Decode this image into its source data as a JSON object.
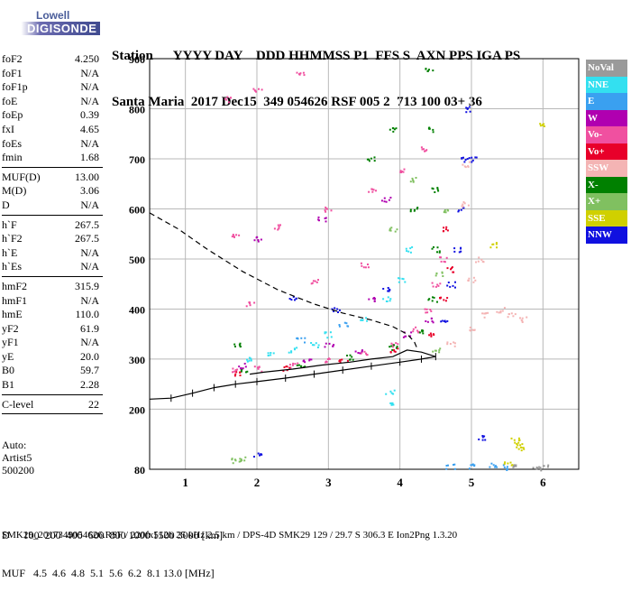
{
  "logo": {
    "top": "Lowell",
    "bottom": "DIGISONDE"
  },
  "header": {
    "line1": "Station      YYYY DAY    DDD HHMMSS P1  FFS S  AXN PPS IGA PS",
    "line2": "Santa Maria  2017 Dec15  349 054626 RSF 005 2  713 100 03+ 36"
  },
  "params": {
    "group1": [
      {
        "k": "foF2",
        "v": "4.250"
      },
      {
        "k": "foF1",
        "v": "N/A"
      },
      {
        "k": "foF1p",
        "v": "N/A"
      },
      {
        "k": "foE",
        "v": "N/A"
      },
      {
        "k": "foEp",
        "v": "0.39"
      },
      {
        "k": "fxI",
        "v": "4.65"
      },
      {
        "k": "foEs",
        "v": "N/A"
      },
      {
        "k": "fmin",
        "v": "1.68"
      }
    ],
    "group2": [
      {
        "k": "MUF(D)",
        "v": "13.00"
      },
      {
        "k": "M(D)",
        "v": "3.06"
      },
      {
        "k": "D",
        "v": "N/A"
      }
    ],
    "group3": [
      {
        "k": "h`F",
        "v": "267.5"
      },
      {
        "k": "h`F2",
        "v": "267.5"
      },
      {
        "k": "h`E",
        "v": "N/A"
      },
      {
        "k": "h`Es",
        "v": "N/A"
      }
    ],
    "group4": [
      {
        "k": "hmF2",
        "v": "315.9"
      },
      {
        "k": "hmF1",
        "v": "N/A"
      },
      {
        "k": "hmE",
        "v": "110.0"
      },
      {
        "k": "yF2",
        "v": "61.9"
      },
      {
        "k": "yF1",
        "v": "N/A"
      },
      {
        "k": "yE",
        "v": "20.0"
      },
      {
        "k": "B0",
        "v": "59.7"
      },
      {
        "k": "B1",
        "v": "2.28"
      }
    ],
    "group5": [
      {
        "k": "C-level",
        "v": "22"
      }
    ]
  },
  "auto": {
    "l1": "Auto:",
    "l2": "Artist5",
    "l3": "500200"
  },
  "dmuf": {
    "d_line": "D     100  200  400  600  800 1000 1500 3000 [km]",
    "muf_line": "MUF   4.5  4.6  4.8  5.1  5.6  6.2  8.1 13.0 [MHz]"
  },
  "footer": "SMK29_2017349054626.RSF / 220fx512h 25 kHz 2.5 km / DPS-4D SMK29 129 / 29.7 S 306.3 E Ion2Png 1.3.20",
  "legend": [
    {
      "label": "NoVal",
      "color": "#9a9a9a"
    },
    {
      "label": "NNE",
      "color": "#33e0f0"
    },
    {
      "label": "E",
      "color": "#3aa0f0"
    },
    {
      "label": "W",
      "color": "#b000b0"
    },
    {
      "label": "Vo-",
      "color": "#f050a0"
    },
    {
      "label": "Vo+",
      "color": "#e8002a"
    },
    {
      "label": "SSW",
      "color": "#f4b4b4"
    },
    {
      "label": "X-",
      "color": "#008000"
    },
    {
      "label": "X+",
      "color": "#80c060"
    },
    {
      "label": "SSE",
      "color": "#d0d000"
    },
    {
      "label": "NNW",
      "color": "#1010e0"
    }
  ],
  "chart_data": {
    "type": "scatter",
    "xlim": [
      0.5,
      6.5
    ],
    "ylim": [
      80,
      900
    ],
    "x_ticks": [
      1,
      2,
      3,
      4,
      5,
      6
    ],
    "y_ticks": [
      80,
      200,
      300,
      400,
      500,
      600,
      700,
      800,
      900
    ],
    "grid": true,
    "legend_position": "right",
    "series": [
      {
        "name": "Vo-",
        "color": "#f050a0",
        "points": [
          [
            1.7,
            280
          ],
          [
            2.0,
            282
          ],
          [
            2.5,
            290
          ],
          [
            3.0,
            300
          ],
          [
            3.5,
            312
          ],
          [
            3.9,
            330
          ],
          [
            4.2,
            360
          ],
          [
            4.4,
            400
          ],
          [
            4.5,
            450
          ],
          [
            4.6,
            500
          ],
          [
            1.7,
            545
          ],
          [
            2.3,
            565
          ],
          [
            3.0,
            600
          ],
          [
            3.6,
            640
          ],
          [
            4.0,
            680
          ],
          [
            4.3,
            720
          ],
          [
            1.6,
            820
          ],
          [
            2.0,
            840
          ],
          [
            2.6,
            870
          ],
          [
            1.9,
            410
          ],
          [
            2.8,
            455
          ],
          [
            3.5,
            490
          ]
        ]
      },
      {
        "name": "X-",
        "color": "#008000",
        "points": [
          [
            1.8,
            278
          ],
          [
            2.6,
            288
          ],
          [
            3.3,
            305
          ],
          [
            3.9,
            325
          ],
          [
            4.3,
            355
          ],
          [
            4.45,
            420
          ],
          [
            4.5,
            520
          ],
          [
            4.5,
            640
          ],
          [
            4.45,
            760
          ],
          [
            4.4,
            880
          ],
          [
            3.9,
            760
          ],
          [
            3.6,
            700
          ],
          [
            4.2,
            600
          ],
          [
            1.7,
            330
          ]
        ]
      },
      {
        "name": "NNE",
        "color": "#33e0f0",
        "points": [
          [
            1.9,
            300
          ],
          [
            2.5,
            320
          ],
          [
            3.0,
            350
          ],
          [
            3.5,
            380
          ],
          [
            3.8,
            420
          ],
          [
            4.0,
            460
          ],
          [
            4.1,
            520
          ],
          [
            3.85,
            235
          ],
          [
            3.9,
            210
          ],
          [
            2.2,
            310
          ],
          [
            2.8,
            330
          ]
        ]
      },
      {
        "name": "NNW",
        "color": "#1010e0",
        "points": [
          [
            4.6,
            380
          ],
          [
            4.7,
            450
          ],
          [
            4.8,
            520
          ],
          [
            4.85,
            600
          ],
          [
            4.9,
            700
          ],
          [
            4.95,
            800
          ],
          [
            5.0,
            700
          ],
          [
            2.5,
            425
          ],
          [
            3.1,
            400
          ],
          [
            3.8,
            440
          ],
          [
            2.0,
            110
          ],
          [
            5.15,
            145
          ]
        ]
      },
      {
        "name": "SSW",
        "color": "#f4b4b4",
        "points": [
          [
            4.7,
            330
          ],
          [
            5.0,
            360
          ],
          [
            5.2,
            390
          ],
          [
            5.4,
            400
          ],
          [
            5.55,
            390
          ],
          [
            5.7,
            380
          ],
          [
            5.0,
            460
          ],
          [
            5.1,
            500
          ],
          [
            4.9,
            610
          ],
          [
            4.9,
            690
          ]
        ]
      },
      {
        "name": "W",
        "color": "#b000b0",
        "points": [
          [
            1.8,
            288
          ],
          [
            2.7,
            296
          ],
          [
            3.4,
            318
          ],
          [
            4.1,
            350
          ],
          [
            4.4,
            380
          ],
          [
            2.0,
            540
          ],
          [
            2.9,
            580
          ],
          [
            3.8,
            620
          ],
          [
            3.0,
            330
          ],
          [
            3.6,
            420
          ]
        ]
      },
      {
        "name": "Vo+",
        "color": "#e8002a",
        "points": [
          [
            1.7,
            272
          ],
          [
            2.4,
            282
          ],
          [
            3.2,
            296
          ],
          [
            3.9,
            320
          ],
          [
            4.4,
            350
          ],
          [
            4.6,
            420
          ],
          [
            4.7,
            480
          ],
          [
            4.6,
            560
          ]
        ]
      },
      {
        "name": "X+",
        "color": "#80c060",
        "points": [
          [
            4.5,
            320
          ],
          [
            4.55,
            470
          ],
          [
            4.6,
            600
          ],
          [
            3.9,
            560
          ],
          [
            4.2,
            660
          ],
          [
            1.7,
            98
          ],
          [
            1.8,
            101
          ]
        ]
      },
      {
        "name": "E",
        "color": "#3aa0f0",
        "points": [
          [
            2.6,
            340
          ],
          [
            3.2,
            370
          ],
          [
            4.7,
            86
          ],
          [
            5.0,
            88
          ],
          [
            5.3,
            88
          ],
          [
            5.5,
            85
          ]
        ]
      },
      {
        "name": "SSE",
        "color": "#d0d000",
        "points": [
          [
            5.6,
            138
          ],
          [
            5.65,
            130
          ],
          [
            5.7,
            122
          ],
          [
            5.3,
            530
          ],
          [
            6.0,
            770
          ],
          [
            5.5,
            92
          ]
        ]
      },
      {
        "name": "NoVal",
        "color": "#9a9a9a",
        "points": [
          [
            5.6,
            86
          ],
          [
            5.9,
            84
          ],
          [
            6.0,
            86
          ]
        ]
      }
    ],
    "profile_upper": {
      "color": "#000000",
      "style": "dashed",
      "points": [
        [
          0.5,
          592
        ],
        [
          0.9,
          560
        ],
        [
          1.3,
          520
        ],
        [
          1.8,
          475
        ],
        [
          2.3,
          438
        ],
        [
          2.8,
          410
        ],
        [
          3.2,
          392
        ],
        [
          3.6,
          378
        ],
        [
          3.9,
          365
        ],
        [
          4.1,
          350
        ],
        [
          4.2,
          335
        ],
        [
          4.25,
          318
        ]
      ]
    },
    "trace_lower": {
      "color": "#000000",
      "style": "solid-ticked",
      "points": [
        [
          0.5,
          220
        ],
        [
          0.8,
          222
        ],
        [
          1.1,
          232
        ],
        [
          1.4,
          243
        ],
        [
          1.7,
          250
        ],
        [
          2.0,
          255
        ],
        [
          2.4,
          262
        ],
        [
          2.8,
          270
        ],
        [
          3.2,
          278
        ],
        [
          3.6,
          286
        ],
        [
          4.0,
          294
        ],
        [
          4.3,
          300
        ],
        [
          4.5,
          305
        ],
        [
          4.3,
          314
        ],
        [
          4.1,
          318
        ],
        [
          3.9,
          305
        ],
        [
          3.6,
          300
        ],
        [
          3.3,
          294
        ],
        [
          2.9,
          288
        ],
        [
          2.5,
          280
        ],
        [
          2.1,
          274
        ],
        [
          1.9,
          270
        ]
      ]
    }
  }
}
